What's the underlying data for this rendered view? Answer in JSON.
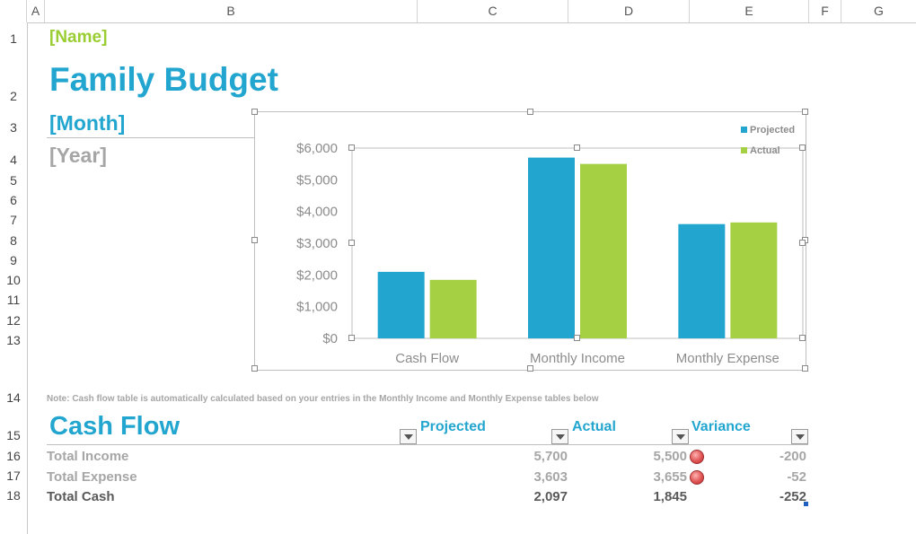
{
  "spreadsheet": {
    "column_headers": [
      "A",
      "B",
      "C",
      "D",
      "E",
      "F",
      "G"
    ],
    "row_headers": [
      "1",
      "2",
      "3",
      "4",
      "5",
      "6",
      "7",
      "8",
      "9",
      "10",
      "11",
      "12",
      "13",
      "14",
      "15",
      "16",
      "17",
      "18"
    ]
  },
  "sheet": {
    "name_placeholder": "[Name]",
    "title": "Family Budget",
    "month_placeholder": "[Month]",
    "year_placeholder": "[Year]",
    "note": "Note: Cash flow table is automatically calculated based on your entries in the Monthly Income and Monthly Expense tables below"
  },
  "chart_data": {
    "type": "bar",
    "categories": [
      "Cash Flow",
      "Monthly Income",
      "Monthly Expense"
    ],
    "series": [
      {
        "name": "Projected",
        "values": [
          2097,
          5700,
          3603
        ],
        "color": "#22a6cf"
      },
      {
        "name": "Actual",
        "values": [
          1845,
          5500,
          3655
        ],
        "color": "#a5d043"
      }
    ],
    "y_ticks": [
      "$0",
      "$1,000",
      "$2,000",
      "$3,000",
      "$4,000",
      "$5,000",
      "$6,000"
    ],
    "ylim": [
      0,
      6000
    ],
    "grid": false,
    "legend_position": "top-right"
  },
  "cash_flow": {
    "title": "Cash Flow",
    "columns": [
      "Projected",
      "Actual",
      "Variance"
    ],
    "rows": [
      {
        "label": "Total Income",
        "projected": "5,700",
        "actual": "5,500",
        "variance": "-200",
        "indicator": "red-dot-icon"
      },
      {
        "label": "Total Expense",
        "projected": "3,603",
        "actual": "3,655",
        "variance": "-52",
        "indicator": "red-dot-icon"
      },
      {
        "label": "Total Cash",
        "projected": "2,097",
        "actual": "1,845",
        "variance": "-252"
      }
    ],
    "indicator_color": "#e05555"
  }
}
